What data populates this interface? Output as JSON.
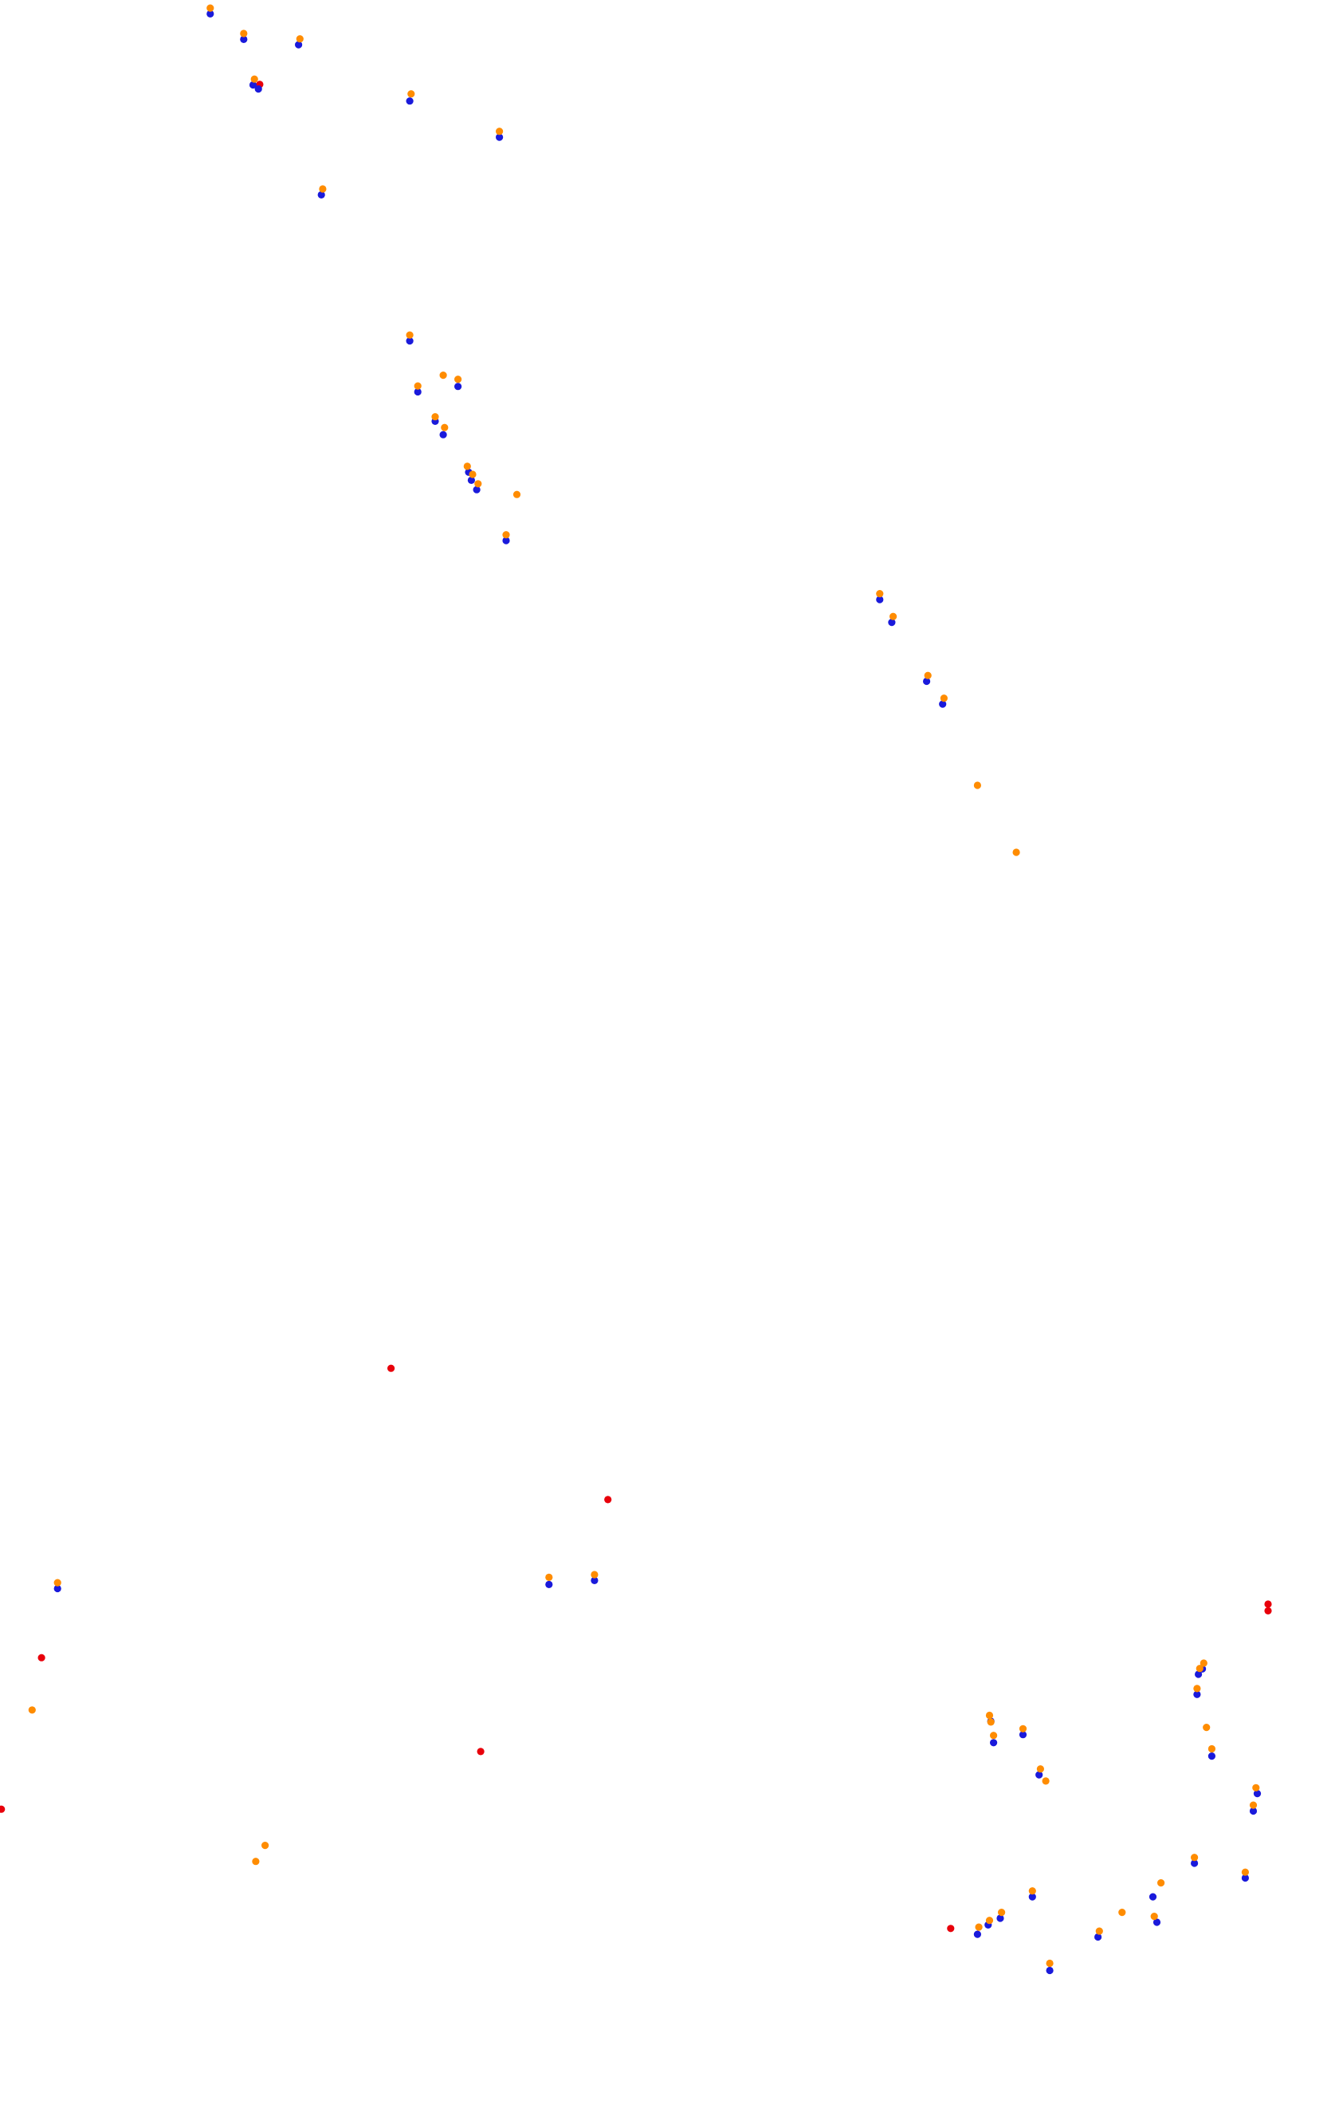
{
  "chart_data": {
    "type": "scatter",
    "title": "",
    "xlabel": "",
    "ylabel": "",
    "xlim": [
      0,
      1000
    ],
    "ylim": [
      1573,
      0
    ],
    "y_axis_inverted": true,
    "axes_visible": false,
    "grid": false,
    "legend": "none",
    "colors": {
      "red": "#e8000b",
      "blue": "#1a1adb",
      "orange": "#ff8c00"
    },
    "series": [
      {
        "color": "#e8000b",
        "x": [
          194,
          292,
          454,
          947,
          947,
          31,
          359,
          1,
          710
        ],
        "y": [
          63,
          1021,
          1119,
          1197,
          1202,
          1237,
          1307,
          1350,
          1439
        ]
      },
      {
        "color": "#1a1adb",
        "x": [
          157,
          182,
          223,
          189,
          193,
          306,
          373,
          240,
          306,
          312,
          342,
          325,
          331,
          350,
          352,
          356,
          378,
          657,
          666,
          692,
          704,
          43,
          410,
          444,
          898,
          895,
          894,
          740,
          742,
          764,
          905,
          776,
          939,
          936,
          892,
          930,
          771,
          864,
          861,
          820,
          747,
          738,
          730,
          784
        ],
        "y": [
          8,
          27,
          31,
          61,
          64,
          73,
          100,
          143,
          252,
          290,
          286,
          312,
          322,
          350,
          356,
          363,
          401,
          445,
          462,
          506,
          523,
          1183,
          1180,
          1177,
          1243,
          1247,
          1262,
          1282,
          1298,
          1292,
          1308,
          1322,
          1336,
          1349,
          1388,
          1399,
          1413,
          1432,
          1413,
          1443,
          1429,
          1434,
          1441,
          1468
        ]
      },
      {
        "color": "#ff8c00",
        "x": [
          157,
          182,
          224,
          190,
          307,
          373,
          241,
          306,
          312,
          331,
          342,
          325,
          332,
          349,
          353,
          357,
          386,
          378,
          657,
          667,
          693,
          705,
          730,
          759,
          43,
          24,
          410,
          444,
          191,
          198,
          899,
          896,
          894,
          739,
          740,
          742,
          764,
          901,
          905,
          777,
          781,
          938,
          936,
          892,
          930,
          771,
          867,
          838,
          862,
          821,
          748,
          739,
          731,
          784
        ],
        "y": [
          6,
          25,
          29,
          59,
          70,
          98,
          141,
          250,
          288,
          280,
          283,
          311,
          319,
          348,
          354,
          361,
          369,
          399,
          443,
          460,
          504,
          521,
          586,
          636,
          1181,
          1276,
          1177,
          1175,
          1389,
          1377,
          1241,
          1245,
          1260,
          1280,
          1285,
          1295,
          1290,
          1289,
          1305,
          1320,
          1329,
          1334,
          1347,
          1386,
          1397,
          1411,
          1405,
          1427,
          1430,
          1441,
          1427,
          1433,
          1438,
          1465
        ]
      }
    ]
  }
}
